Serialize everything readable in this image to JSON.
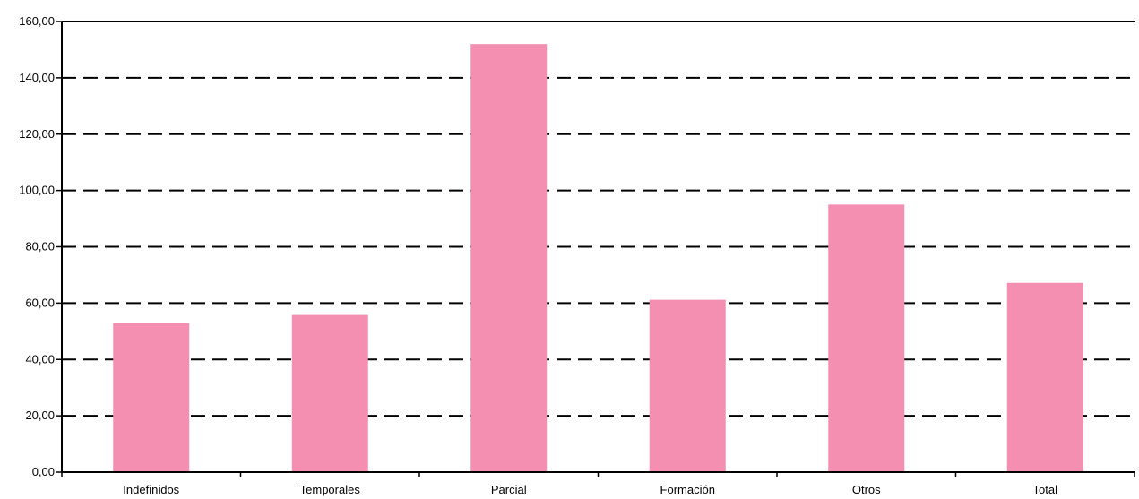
{
  "chart_data": {
    "type": "bar",
    "categories": [
      "Indefinidos",
      "Temporales",
      "Parcial",
      "Formación",
      "Otros",
      "Total"
    ],
    "values": [
      53.0,
      55.8,
      152.0,
      61.2,
      95.0,
      67.2
    ],
    "title": "",
    "xlabel": "",
    "ylabel": "",
    "ylim": [
      0,
      160
    ],
    "y_ticks": [
      "0,00",
      "20,00",
      "40,00",
      "60,00",
      "80,00",
      "100,00",
      "120,00",
      "140,00",
      "160,00"
    ],
    "grid": "dashed horizontal",
    "bar_color": "#f48fb1",
    "axis_color": "#000000"
  }
}
